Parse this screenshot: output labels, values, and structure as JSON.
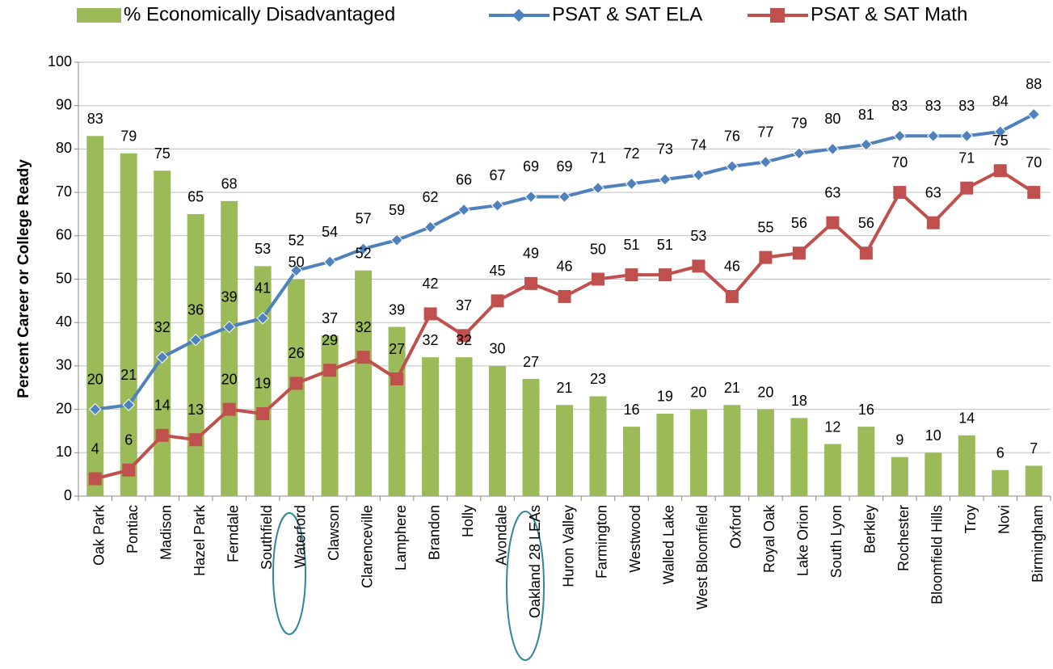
{
  "chart_data": {
    "type": "bar_line",
    "y_axis_label": "Percent Career or College Ready",
    "categories": [
      "Oak Park",
      "Pontiac",
      "Madison",
      "Hazel Park",
      "Ferndale",
      "Southfield",
      "Waterford",
      "Clawson",
      "Clarenceville",
      "Lamphere",
      "Brandon",
      "Holly",
      "Avondale",
      "Oakland 28 LEAs",
      "Huron Valley",
      "Farmington",
      "Westwood",
      "Walled Lake",
      "West Bloomfield",
      "Oxford",
      "Royal Oak",
      "Lake Orion",
      "South Lyon",
      "Berkley",
      "Rochester",
      "Bloomfield Hills",
      "Troy",
      "Novi",
      "Birmingham"
    ],
    "series": [
      {
        "name": "% Economically Disadvantaged",
        "type": "bar",
        "color": "#9bbb59",
        "values": [
          83,
          79,
          75,
          65,
          68,
          53,
          50,
          37,
          52,
          39,
          32,
          32,
          30,
          27,
          21,
          23,
          16,
          19,
          20,
          21,
          20,
          18,
          12,
          16,
          9,
          10,
          14,
          6,
          7
        ]
      },
      {
        "name": "PSAT & SAT ELA",
        "type": "line",
        "marker": "diamond",
        "color": "#4f81bd",
        "values": [
          20,
          21,
          32,
          36,
          39,
          41,
          52,
          54,
          57,
          59,
          62,
          66,
          67,
          69,
          69,
          71,
          72,
          73,
          74,
          76,
          77,
          79,
          80,
          81,
          83,
          83,
          83,
          84,
          88
        ]
      },
      {
        "name": "PSAT & SAT Math",
        "type": "line",
        "marker": "square",
        "color": "#c0504d",
        "values": [
          4,
          6,
          14,
          13,
          20,
          19,
          26,
          29,
          32,
          27,
          42,
          37,
          45,
          49,
          46,
          50,
          51,
          51,
          53,
          46,
          55,
          56,
          63,
          56,
          70,
          63,
          71,
          75,
          70
        ]
      }
    ],
    "ylim": [
      0,
      100
    ],
    "yticks": [
      0,
      10,
      20,
      30,
      40,
      50,
      60,
      70,
      80,
      90,
      100
    ],
    "grid": true
  }
}
